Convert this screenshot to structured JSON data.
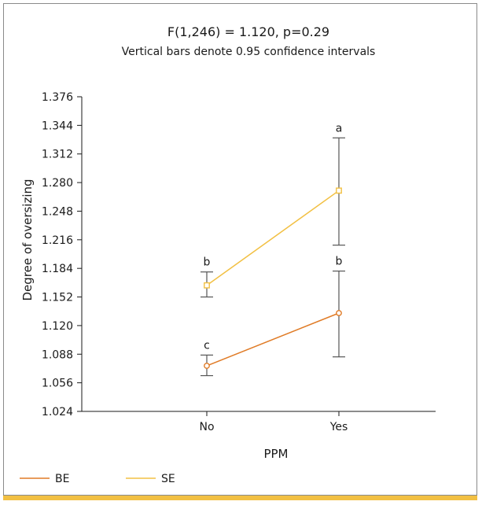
{
  "colors": {
    "be": "#E07B26",
    "se": "#F2C043",
    "error_bar": "#555555",
    "bottom_bar": "#F2C043"
  },
  "chart_data": {
    "type": "line",
    "title": "F(1,246) = 1.120, p=0.29",
    "subtitle": "Vertical bars denote 0.95 confidence intervals",
    "xlabel": "PPM",
    "ylabel": "Degree of oversizing",
    "categories": [
      "No",
      "Yes"
    ],
    "yticks": [
      "1.376",
      "1.344",
      "1.312",
      "1.280",
      "1.248",
      "1.216",
      "1.184",
      "1.152",
      "1.120",
      "1.088",
      "1.056",
      "1.024"
    ],
    "ylim": [
      1.024,
      1.376
    ],
    "grid": false,
    "legend_position": "bottom-left",
    "series": [
      {
        "name": "BE",
        "values": [
          1.075,
          1.134
        ],
        "ci_low": [
          1.064,
          1.085
        ],
        "ci_high": [
          1.087,
          1.181
        ],
        "labels": [
          "c",
          "b"
        ],
        "marker": "circle"
      },
      {
        "name": "SE",
        "values": [
          1.165,
          1.271
        ],
        "ci_low": [
          1.152,
          1.21
        ],
        "ci_high": [
          1.18,
          1.33
        ],
        "labels": [
          "b",
          "a"
        ],
        "marker": "square"
      }
    ]
  }
}
